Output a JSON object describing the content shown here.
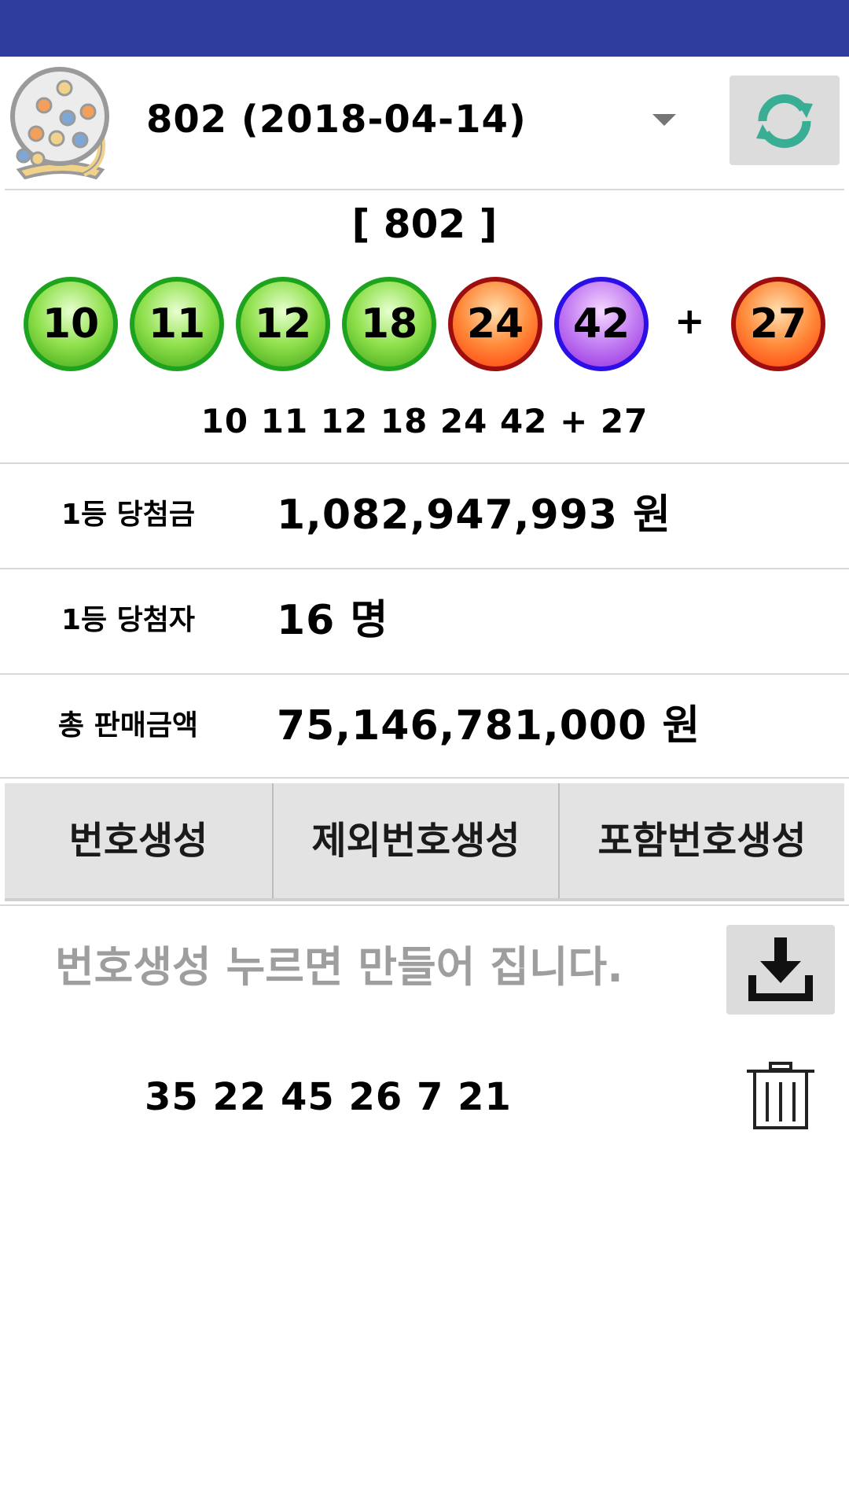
{
  "header": {
    "round_select_value": "802 (2018-04-14)",
    "icons": {
      "app": "lottery-machine-icon",
      "refresh": "refresh-icon",
      "dropdown": "dropdown-caret-icon"
    }
  },
  "draw": {
    "round_label": "[ 802 ]",
    "balls": [
      {
        "number": "10",
        "color": "green"
      },
      {
        "number": "11",
        "color": "green"
      },
      {
        "number": "12",
        "color": "green"
      },
      {
        "number": "18",
        "color": "green"
      },
      {
        "number": "24",
        "color": "red"
      },
      {
        "number": "42",
        "color": "purple"
      }
    ],
    "plus": "+",
    "bonus_ball": {
      "number": "27",
      "color": "red"
    },
    "numbers_text": "10 11 12 18 24 42 + 27"
  },
  "info": [
    {
      "label": "1등 당첨금",
      "value": "1,082,947,993 원"
    },
    {
      "label": "1등 당첨자",
      "value": "16 명"
    },
    {
      "label": "총 판매금액",
      "value": "75,146,781,000 원"
    }
  ],
  "generate_tabs": [
    {
      "label": "번호생성"
    },
    {
      "label": "제외번호생성"
    },
    {
      "label": "포함번호생성"
    }
  ],
  "generator": {
    "hint": "번호생성 누르면 만들어 집니다.",
    "icons": {
      "download": "download-icon",
      "delete": "trash-icon"
    },
    "results": [
      "35 22 45 26 7 21"
    ]
  },
  "colors": {
    "status_bar": "#2f3e9e",
    "ball_green_border": "#1ea31e",
    "ball_red_border": "#9e0e0e",
    "ball_purple_border": "#2a10e6",
    "refresh_teal": "#3aae95",
    "hint_gray": "#9e9e9e"
  }
}
